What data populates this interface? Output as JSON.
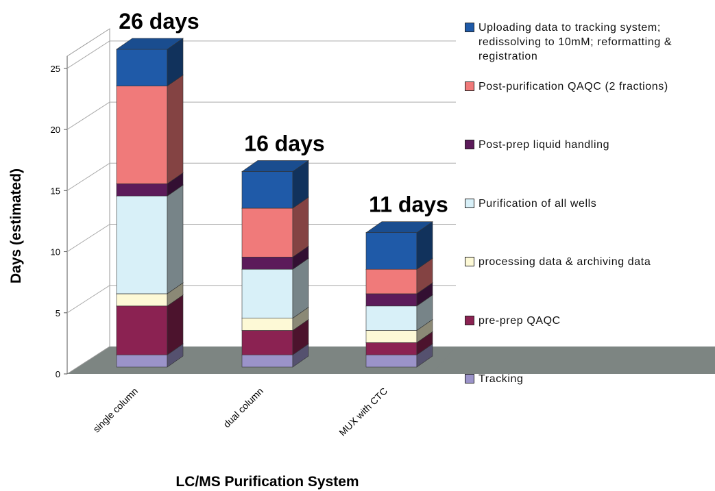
{
  "chart_data": {
    "type": "bar3d_stacked",
    "x_label": "LC/MS Purification System",
    "y_label": "Days (estimated)",
    "categories": [
      "single column",
      "dual column",
      "MUX with CTC"
    ],
    "total_labels": [
      "26 days",
      "16 days",
      "11 days"
    ],
    "series": [
      {
        "name": "Tracking",
        "color": "#9b93c9",
        "values": [
          1,
          1,
          1
        ]
      },
      {
        "name": "pre-prep QAQC",
        "color": "#8b2252",
        "values": [
          4,
          2,
          1
        ]
      },
      {
        "name": "processing data & archiving data",
        "color": "#fdf9d6",
        "values": [
          1,
          1,
          1
        ]
      },
      {
        "name": "Purification of all wells",
        "color": "#d8f0f8",
        "values": [
          8,
          4,
          2
        ]
      },
      {
        "name": "Post-prep liquid handling",
        "color": "#5c1b5a",
        "values": [
          1,
          1,
          1
        ]
      },
      {
        "name": "Post-purification QAQC (2 fractions)",
        "color": "#f07a7a",
        "values": [
          8,
          4,
          2
        ]
      },
      {
        "name": "Uploading data to tracking system; redissolving to 10mM; reformatting & registration",
        "color": "#1f5aa8",
        "values": [
          3,
          3,
          3
        ]
      }
    ],
    "ylim": [
      0,
      26
    ],
    "yticks": [
      0,
      5,
      10,
      15,
      20,
      25
    ],
    "grid": true
  }
}
